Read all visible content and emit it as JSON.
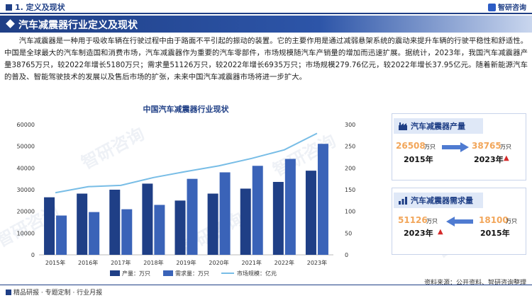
{
  "header": {
    "section": "1. 定义及现状",
    "logo": "智研咨询"
  },
  "title": "汽车减震器行业定义及现状",
  "paragraph": "汽车减震器是一种用于吸收车辆在行驶过程中由于路面不平引起的振动的装置。它的主要作用是通过减弱悬架系统的震动来提升车辆的行驶平稳性和舒适性。中国是全球最大的汽车制造国和消费市场，汽车减震器作为重要的汽车零部件，市场规模随汽车产销量的增加而迅速扩展。据统计，2023年，我国汽车减震器产量38765万只，较2022年增长5180万只；需求量51126万只，较2022年增长6935万只；市场规模279.76亿元，较2022年增长37.95亿元。随着新能源汽车的普及、智能驾驶技术的发展以及售后市场的扩张，未来中国汽车减震器市场将进一步扩大。",
  "chart_data": {
    "type": "bar",
    "title": "中国汽车减震器行业现状",
    "categories": [
      "2015年",
      "2016年",
      "2017年",
      "2018年",
      "2019年",
      "2020年",
      "2021年",
      "2022年",
      "2023年"
    ],
    "series": [
      {
        "name": "产量：万只",
        "type": "bar",
        "axis": "left",
        "values": [
          26508,
          28200,
          30000,
          32800,
          25000,
          28200,
          30500,
          33585,
          38765
        ]
      },
      {
        "name": "需求量：万只",
        "type": "bar",
        "axis": "left",
        "values": [
          18100,
          19700,
          21000,
          23000,
          35000,
          38000,
          41000,
          44191,
          51126
        ]
      },
      {
        "name": "市场规模：亿元",
        "type": "line",
        "axis": "right",
        "values": [
          143,
          157,
          160,
          178,
          192,
          205,
          222,
          241.81,
          279.76
        ]
      }
    ],
    "y_left": {
      "min": 0,
      "max": 60000,
      "ticks": [
        0,
        10000,
        20000,
        30000,
        40000,
        50000,
        60000
      ]
    },
    "y_right": {
      "min": 0,
      "max": 300,
      "ticks": [
        0,
        50,
        100,
        150,
        200,
        250,
        300
      ]
    },
    "legend_position": "bottom",
    "colors": {
      "production": "#1f3f86",
      "demand": "#3a63b8",
      "market": "#78bde6"
    }
  },
  "cards": [
    {
      "title": "汽车减震器产量",
      "left_value": "26508",
      "left_unit": "万只",
      "left_year": "2015年",
      "right_value": "38765",
      "right_unit": "万只",
      "right_year": "2023年"
    },
    {
      "title": "汽车减震器需求量",
      "left_value": "51126",
      "left_unit": "万只",
      "left_year": "2023年",
      "right_value": "18100",
      "right_unit": "万只",
      "right_year": "2015年"
    }
  ],
  "footer": {
    "left": "精品研报 · 专题定制 · 行业月报",
    "right": "资料来源：公开资料、智研咨询整理"
  }
}
